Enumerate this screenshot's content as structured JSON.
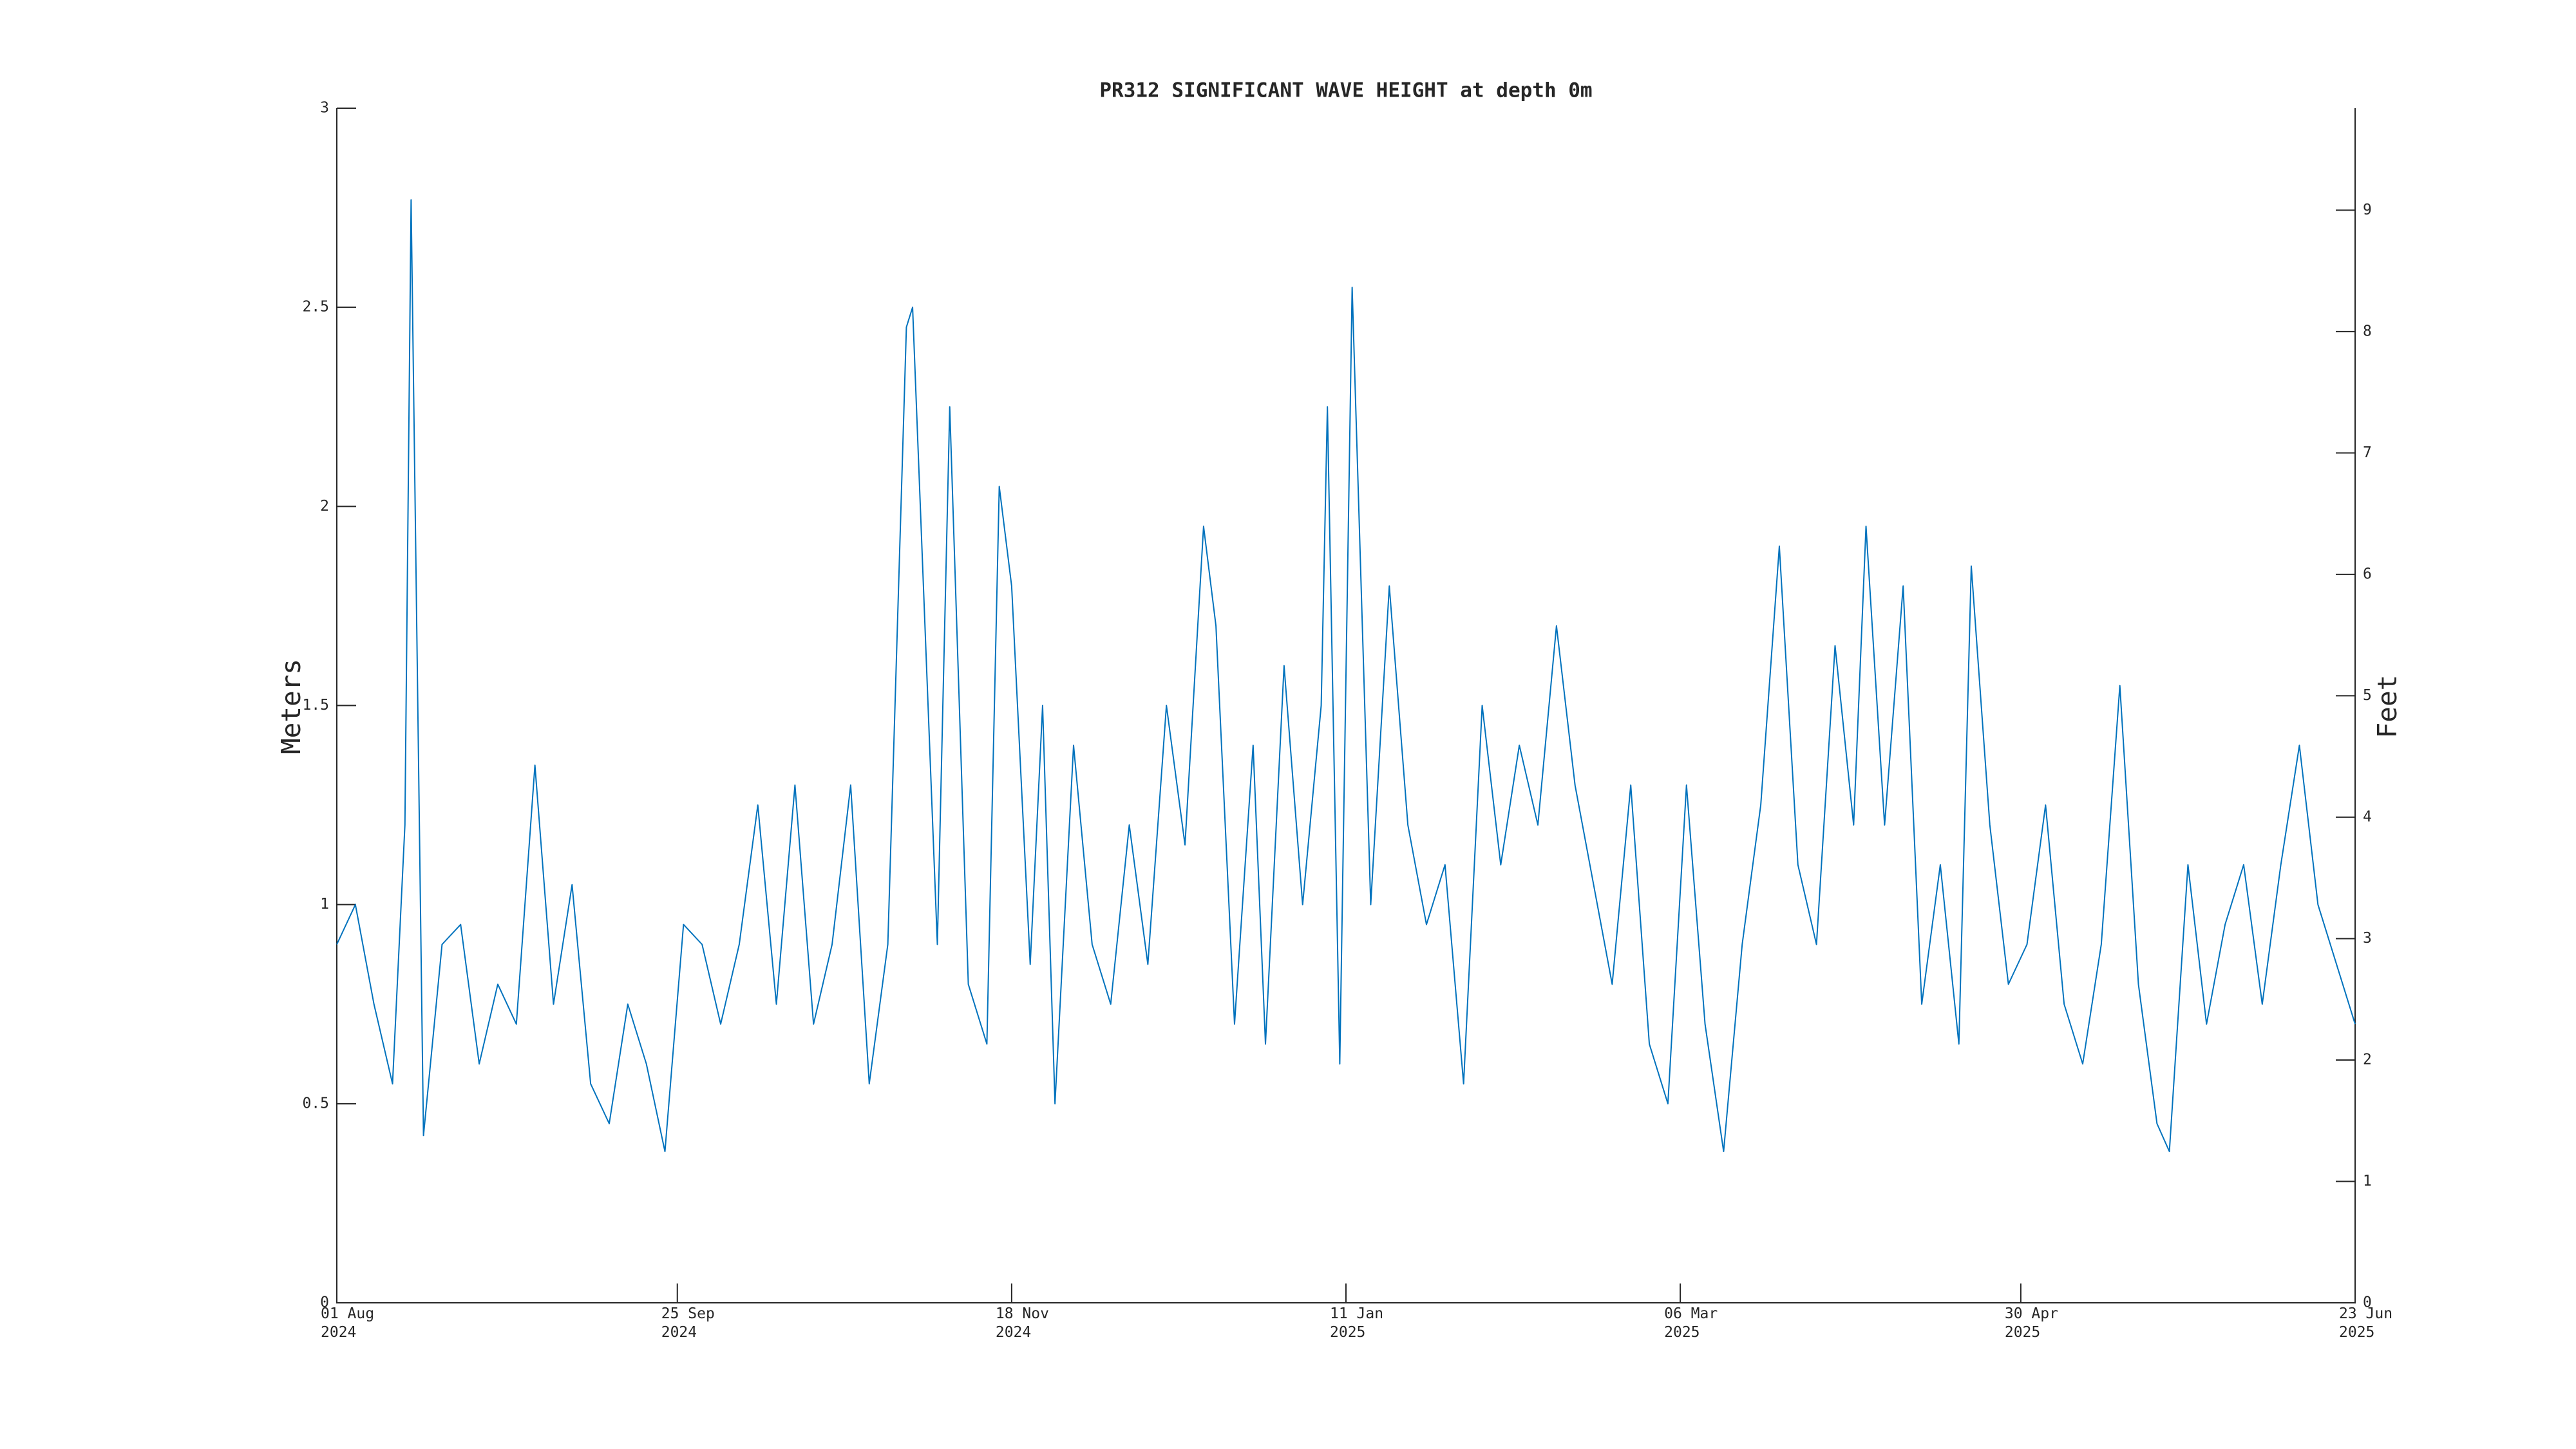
{
  "chart_data": {
    "type": "line",
    "title": "PR312 SIGNIFICANT WAVE HEIGHT at depth 0m",
    "ylabel": "Meters",
    "y2label": "Feet",
    "color": "#0072bd",
    "xlim": [
      "2024-08-01",
      "2025-06-23"
    ],
    "xticks": [
      {
        "value": "2024-08-01",
        "label": [
          "01 Aug",
          "2024"
        ]
      },
      {
        "value": "2024-09-25",
        "label": [
          "25 Sep",
          "2024"
        ]
      },
      {
        "value": "2024-11-18",
        "label": [
          "18 Nov",
          "2024"
        ]
      },
      {
        "value": "2025-01-11",
        "label": [
          "11 Jan",
          "2025"
        ]
      },
      {
        "value": "2025-03-06",
        "label": [
          "06 Mar",
          "2025"
        ]
      },
      {
        "value": "2025-04-30",
        "label": [
          "30 Apr",
          "2025"
        ]
      },
      {
        "value": "2025-06-23",
        "label": [
          "23 Jun",
          "2025"
        ]
      }
    ],
    "ylim": [
      0,
      3
    ],
    "yticks": [
      0,
      0.5,
      1,
      1.5,
      2,
      2.5,
      3
    ],
    "y2lim": [
      0,
      9.84
    ],
    "y2ticks": [
      0,
      1,
      2,
      3,
      4,
      5,
      6,
      7,
      8,
      9
    ],
    "x": [
      "2024-08-01",
      "2024-08-04",
      "2024-08-07",
      "2024-08-10",
      "2024-08-12",
      "2024-08-13",
      "2024-08-15",
      "2024-08-18",
      "2024-08-21",
      "2024-08-24",
      "2024-08-27",
      "2024-08-30",
      "2024-09-02",
      "2024-09-05",
      "2024-09-08",
      "2024-09-11",
      "2024-09-14",
      "2024-09-17",
      "2024-09-20",
      "2024-09-23",
      "2024-09-26",
      "2024-09-29",
      "2024-10-02",
      "2024-10-05",
      "2024-10-08",
      "2024-10-11",
      "2024-10-14",
      "2024-10-17",
      "2024-10-20",
      "2024-10-23",
      "2024-10-26",
      "2024-10-29",
      "2024-11-01",
      "2024-11-02",
      "2024-11-04",
      "2024-11-06",
      "2024-11-08",
      "2024-11-11",
      "2024-11-14",
      "2024-11-16",
      "2024-11-18",
      "2024-11-21",
      "2024-11-23",
      "2024-11-25",
      "2024-11-28",
      "2024-12-01",
      "2024-12-04",
      "2024-12-07",
      "2024-12-10",
      "2024-12-13",
      "2024-12-16",
      "2024-12-19",
      "2024-12-21",
      "2024-12-24",
      "2024-12-27",
      "2024-12-29",
      "2025-01-01",
      "2025-01-04",
      "2025-01-07",
      "2025-01-08",
      "2025-01-10",
      "2025-01-12",
      "2025-01-15",
      "2025-01-18",
      "2025-01-21",
      "2025-01-24",
      "2025-01-27",
      "2025-01-30",
      "2025-02-02",
      "2025-02-05",
      "2025-02-08",
      "2025-02-11",
      "2025-02-14",
      "2025-02-17",
      "2025-02-20",
      "2025-02-23",
      "2025-02-26",
      "2025-03-01",
      "2025-03-04",
      "2025-03-07",
      "2025-03-10",
      "2025-03-13",
      "2025-03-16",
      "2025-03-19",
      "2025-03-22",
      "2025-03-25",
      "2025-03-28",
      "2025-03-31",
      "2025-04-03",
      "2025-04-05",
      "2025-04-08",
      "2025-04-11",
      "2025-04-14",
      "2025-04-17",
      "2025-04-20",
      "2025-04-22",
      "2025-04-25",
      "2025-04-28",
      "2025-05-01",
      "2025-05-04",
      "2025-05-07",
      "2025-05-10",
      "2025-05-13",
      "2025-05-16",
      "2025-05-19",
      "2025-05-22",
      "2025-05-24",
      "2025-05-27",
      "2025-05-30",
      "2025-06-02",
      "2025-06-05",
      "2025-06-08",
      "2025-06-11",
      "2025-06-14",
      "2025-06-17",
      "2025-06-20",
      "2025-06-23"
    ],
    "values": [
      0.9,
      1.0,
      0.75,
      0.55,
      1.2,
      2.77,
      0.42,
      0.9,
      0.95,
      0.6,
      0.8,
      0.7,
      1.35,
      0.75,
      1.05,
      0.55,
      0.45,
      0.75,
      0.6,
      0.38,
      0.95,
      0.9,
      0.7,
      0.9,
      1.25,
      0.75,
      1.3,
      0.7,
      0.9,
      1.3,
      0.55,
      0.9,
      2.45,
      2.5,
      1.7,
      0.9,
      2.25,
      0.8,
      0.65,
      2.05,
      1.8,
      0.85,
      1.5,
      0.5,
      1.4,
      0.9,
      0.75,
      1.2,
      0.85,
      1.5,
      1.15,
      1.95,
      1.7,
      0.7,
      1.4,
      0.65,
      1.6,
      1.0,
      1.5,
      2.25,
      0.6,
      2.55,
      1.0,
      1.8,
      1.2,
      0.95,
      1.1,
      0.55,
      1.5,
      1.1,
      1.4,
      1.2,
      1.7,
      1.3,
      1.05,
      0.8,
      1.3,
      0.65,
      0.5,
      1.3,
      0.7,
      0.38,
      0.9,
      1.25,
      1.9,
      1.1,
      0.9,
      1.65,
      1.2,
      1.95,
      1.2,
      1.8,
      0.75,
      1.1,
      0.65,
      1.85,
      1.2,
      0.8,
      0.9,
      1.25,
      0.75,
      0.6,
      0.9,
      1.55,
      0.8,
      0.45,
      0.38,
      1.1,
      0.7,
      0.95,
      1.1,
      0.75,
      1.1,
      1.4,
      1.0,
      0.85,
      0.7
    ]
  }
}
